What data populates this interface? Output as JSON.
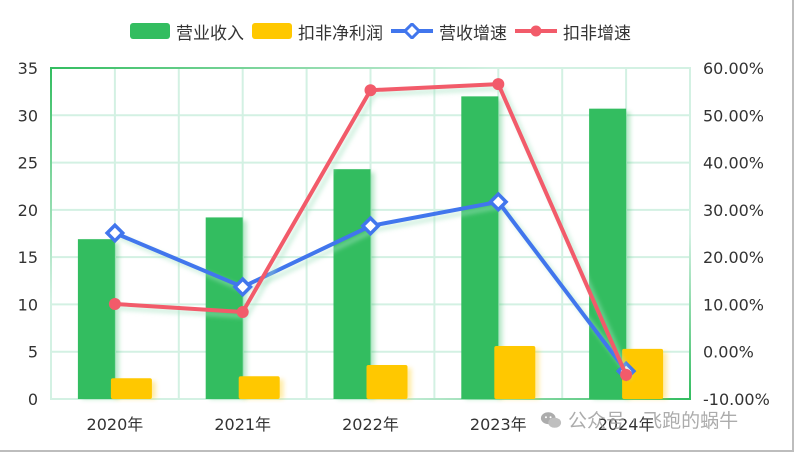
{
  "legend": [
    {
      "label": "营业收入",
      "type": "bar",
      "color": "#33bd60"
    },
    {
      "label": "扣非净利润",
      "type": "bar",
      "color": "#ffc800"
    },
    {
      "label": "营收增速",
      "type": "line",
      "color": "#4176ed",
      "marker": "diamond"
    },
    {
      "label": "扣非增速",
      "type": "line",
      "color": "#f25b6a",
      "marker": "circle"
    }
  ],
  "watermark": {
    "text": "公众号 · 飞跑的蜗牛",
    "icon": "wechat-icon"
  },
  "colors": {
    "grid": "#d3f1e3",
    "axis_green": "#33bd60",
    "text": "#333333"
  },
  "chart_data": {
    "type": "bar",
    "title": "",
    "categories": [
      "2020年",
      "2021年",
      "2022年",
      "2023年",
      "2024年"
    ],
    "xlabel": "",
    "ylabel": "",
    "y_left": {
      "range": [
        0,
        35
      ],
      "ticks": [
        "0",
        "5",
        "10",
        "15",
        "20",
        "25",
        "30",
        "35"
      ]
    },
    "y_right": {
      "range": [
        -10,
        60
      ],
      "unit": "%",
      "ticks": [
        "-10.00%",
        "0.00%",
        "10.00%",
        "20.00%",
        "30.00%",
        "40.00%",
        "50.00%",
        "60.00%"
      ]
    },
    "grid": true,
    "legend_position": "top",
    "series": [
      {
        "name": "营业收入",
        "type": "bar",
        "axis": "left",
        "color": "#33bd60",
        "values": [
          16.9,
          19.2,
          24.3,
          32.0,
          30.7
        ]
      },
      {
        "name": "扣非净利润",
        "type": "bar",
        "axis": "left",
        "color": "#ffc800",
        "values": [
          2.2,
          2.4,
          3.6,
          5.6,
          5.3
        ]
      },
      {
        "name": "营收增速",
        "type": "line",
        "axis": "right",
        "color": "#4176ed",
        "marker": "diamond",
        "values": [
          25.1,
          13.7,
          26.6,
          31.7,
          -4.1
        ]
      },
      {
        "name": "扣非增速",
        "type": "line",
        "axis": "right",
        "color": "#f25b6a",
        "marker": "circle",
        "values": [
          10.1,
          8.4,
          55.3,
          56.6,
          -4.9
        ]
      }
    ]
  }
}
